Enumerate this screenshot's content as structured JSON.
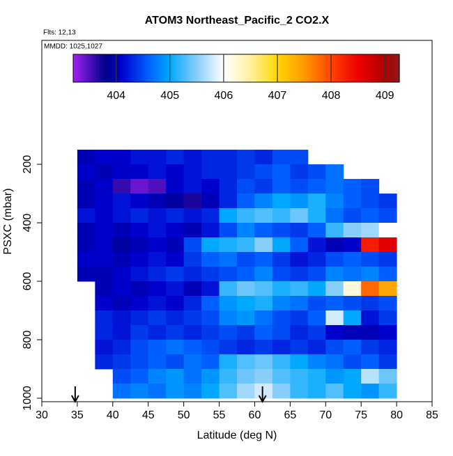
{
  "chart_data": {
    "type": "heatmap",
    "title": "ATOM3 Northeast_Pacific_2 CO2.X",
    "subtitle": "Flts: 12,13",
    "annotation": "MMDD: 1025,1027",
    "x_label": "Latitude (deg N)",
    "y_label": "PSXC (mbar)",
    "xlim": [
      30,
      85
    ],
    "xticks": [
      30,
      35,
      40,
      45,
      50,
      55,
      60,
      65,
      70,
      75,
      80,
      85
    ],
    "ylim": [
      1012,
      -224
    ],
    "yticks": [
      200,
      400,
      600,
      800,
      1000
    ],
    "x_bins": [
      35,
      37.5,
      40,
      42.5,
      45,
      47.5,
      50,
      52.5,
      55,
      57.5,
      60,
      62.5,
      65,
      67.5,
      70,
      72.5,
      75,
      77.5,
      80
    ],
    "y_bins": [
      150,
      200,
      250,
      300,
      350,
      400,
      450,
      500,
      550,
      600,
      650,
      700,
      750,
      800,
      850,
      900,
      950,
      1000
    ],
    "z": [
      [
        404.0,
        404.1,
        404.1,
        404.2,
        404.2,
        404.3,
        404.2,
        404.3,
        404.3,
        404.4,
        404.3,
        404.5,
        404.5,
        null,
        null,
        null,
        null,
        null
      ],
      [
        404.1,
        404.0,
        404.1,
        404.1,
        404.2,
        404.1,
        404.2,
        404.3,
        404.3,
        404.4,
        404.5,
        404.6,
        404.4,
        404.5,
        404.7,
        null,
        null,
        null
      ],
      [
        404.0,
        404.1,
        403.6,
        403.4,
        403.5,
        404.1,
        404.2,
        404.1,
        404.3,
        404.5,
        404.4,
        404.6,
        404.5,
        404.6,
        404.7,
        404.6,
        404.5,
        null
      ],
      [
        404.0,
        404.1,
        404.2,
        404.1,
        404.0,
        403.9,
        403.7,
        404.0,
        404.3,
        404.6,
        404.8,
        405.0,
        404.9,
        405.1,
        404.8,
        404.6,
        404.5,
        404.4
      ],
      [
        404.2,
        404.1,
        404.2,
        404.3,
        404.2,
        404.3,
        404.2,
        404.3,
        405.0,
        405.2,
        405.3,
        405.2,
        405.4,
        405.1,
        404.7,
        404.5,
        404.6,
        404.5
      ],
      [
        404.0,
        404.1,
        404.0,
        404.1,
        404.2,
        404.1,
        404.0,
        404.2,
        404.5,
        404.8,
        404.6,
        404.5,
        404.4,
        404.6,
        405.2,
        405.5,
        405.6,
        406.0
      ],
      [
        404.0,
        404.1,
        403.9,
        404.0,
        404.1,
        404.0,
        404.5,
        405.0,
        405.1,
        405.2,
        405.5,
        405.0,
        404.6,
        404.2,
        404.0,
        404.1,
        408.3,
        408.6
      ],
      [
        404.1,
        404.1,
        404.0,
        404.1,
        404.2,
        404.1,
        404.4,
        404.6,
        404.7,
        404.5,
        404.6,
        404.4,
        404.2,
        404.3,
        404.5,
        404.6,
        404.5,
        404.4
      ],
      [
        404.0,
        404.0,
        404.1,
        404.2,
        404.3,
        404.4,
        404.3,
        404.4,
        404.5,
        404.6,
        404.8,
        404.5,
        404.4,
        404.5,
        404.8,
        404.7,
        404.8,
        404.6
      ],
      [
        null,
        404.0,
        404.1,
        404.0,
        404.1,
        404.2,
        404.0,
        404.2,
        405.2,
        405.4,
        405.3,
        405.1,
        405.2,
        405.0,
        405.5,
        406.2,
        407.8,
        407.4
      ],
      [
        null,
        404.1,
        404.0,
        404.1,
        404.2,
        404.1,
        404.3,
        404.6,
        404.9,
        405.0,
        405.1,
        404.8,
        404.7,
        404.5,
        404.6,
        404.5,
        404.4,
        404.5
      ],
      [
        null,
        404.3,
        404.2,
        404.3,
        404.4,
        404.3,
        404.4,
        404.5,
        404.8,
        404.9,
        404.7,
        404.5,
        404.4,
        404.6,
        405.8,
        405.0,
        404.2,
        404.4
      ],
      [
        null,
        404.3,
        404.2,
        404.4,
        404.3,
        404.4,
        404.3,
        404.4,
        404.5,
        404.4,
        404.6,
        404.5,
        404.3,
        404.4,
        404.1,
        404.0,
        404.0,
        404.1
      ],
      [
        null,
        404.2,
        404.3,
        404.5,
        404.6,
        404.7,
        404.6,
        404.5,
        404.4,
        404.3,
        404.4,
        404.3,
        404.4,
        404.3,
        404.5,
        404.6,
        404.4,
        404.3
      ],
      [
        null,
        404.3,
        404.4,
        404.5,
        404.6,
        404.5,
        404.7,
        404.6,
        405.1,
        405.3,
        405.4,
        405.2,
        405.0,
        404.8,
        404.7,
        404.5,
        404.6,
        404.4
      ],
      [
        null,
        null,
        404.5,
        404.6,
        404.8,
        404.9,
        404.7,
        404.9,
        405.2,
        405.4,
        405.5,
        405.3,
        405.2,
        405.1,
        404.9,
        405.0,
        405.7,
        405.4
      ],
      [
        null,
        null,
        404.7,
        404.8,
        404.7,
        404.9,
        404.8,
        405.0,
        405.3,
        405.6,
        405.8,
        405.5,
        405.2,
        405.1,
        405.3,
        405.0,
        404.9,
        405.2
      ]
    ],
    "zlim": [
      403.2,
      409.27
    ],
    "zticks": [
      404,
      405,
      406,
      407,
      408,
      409
    ],
    "colorscale": {
      "values": [
        403.2,
        403.8,
        404.1,
        404.6,
        405.0,
        405.5,
        406.0,
        406.5,
        407.0,
        407.5,
        408.0,
        408.5,
        409.0,
        409.27
      ],
      "colors": [
        "#a020f0",
        "#00008b",
        "#0000cd",
        "#0060ff",
        "#00a8ff",
        "#87cefa",
        "#ffffff",
        "#fff0a0",
        "#ffd700",
        "#ff9900",
        "#ff4500",
        "#ee0000",
        "#b00000",
        "#8b1a1a"
      ]
    },
    "arrows_x": [
      34.7,
      61.1
    ]
  }
}
